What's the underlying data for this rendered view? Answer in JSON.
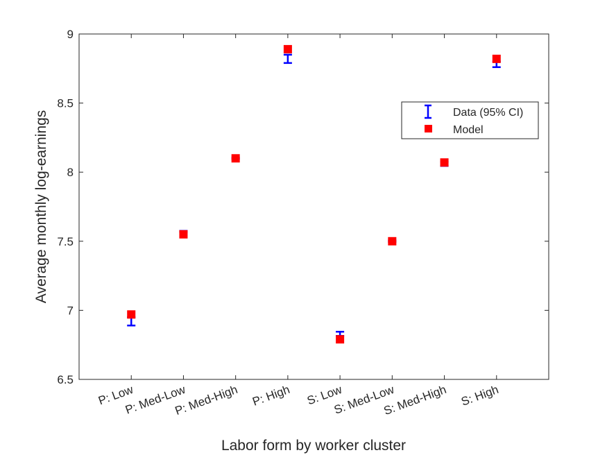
{
  "chart_data": {
    "type": "scatter",
    "xlabel": "Labor form by worker cluster",
    "ylabel": "Average monthly log-earnings",
    "categories": [
      "P: Low",
      "P: Med-Low",
      "P: Med-High",
      "P: High",
      "S: Low",
      "S: Med-Low",
      "S: Med-High",
      "S: High"
    ],
    "ylim": [
      6.5,
      9
    ],
    "yticks": [
      "6.5",
      "7",
      "7.5",
      "8",
      "8.5",
      "9"
    ],
    "grid": false,
    "legend_position": "upper-right",
    "series": [
      {
        "name": "Data (95% CI)",
        "marker": "errorbar",
        "color": "#0000ff",
        "values": [
          6.92,
          7.57,
          8.1,
          8.82,
          6.83,
          7.5,
          8.06,
          8.78
        ],
        "lower": [
          6.89,
          7.565,
          8.095,
          8.79,
          6.815,
          7.495,
          8.045,
          8.76
        ],
        "upper": [
          6.95,
          7.575,
          8.105,
          8.85,
          6.845,
          7.505,
          8.075,
          8.8
        ]
      },
      {
        "name": "Model",
        "marker": "square",
        "color": "#ff0000",
        "values": [
          6.97,
          7.55,
          8.1,
          8.89,
          6.79,
          7.5,
          8.07,
          8.82
        ]
      }
    ]
  }
}
